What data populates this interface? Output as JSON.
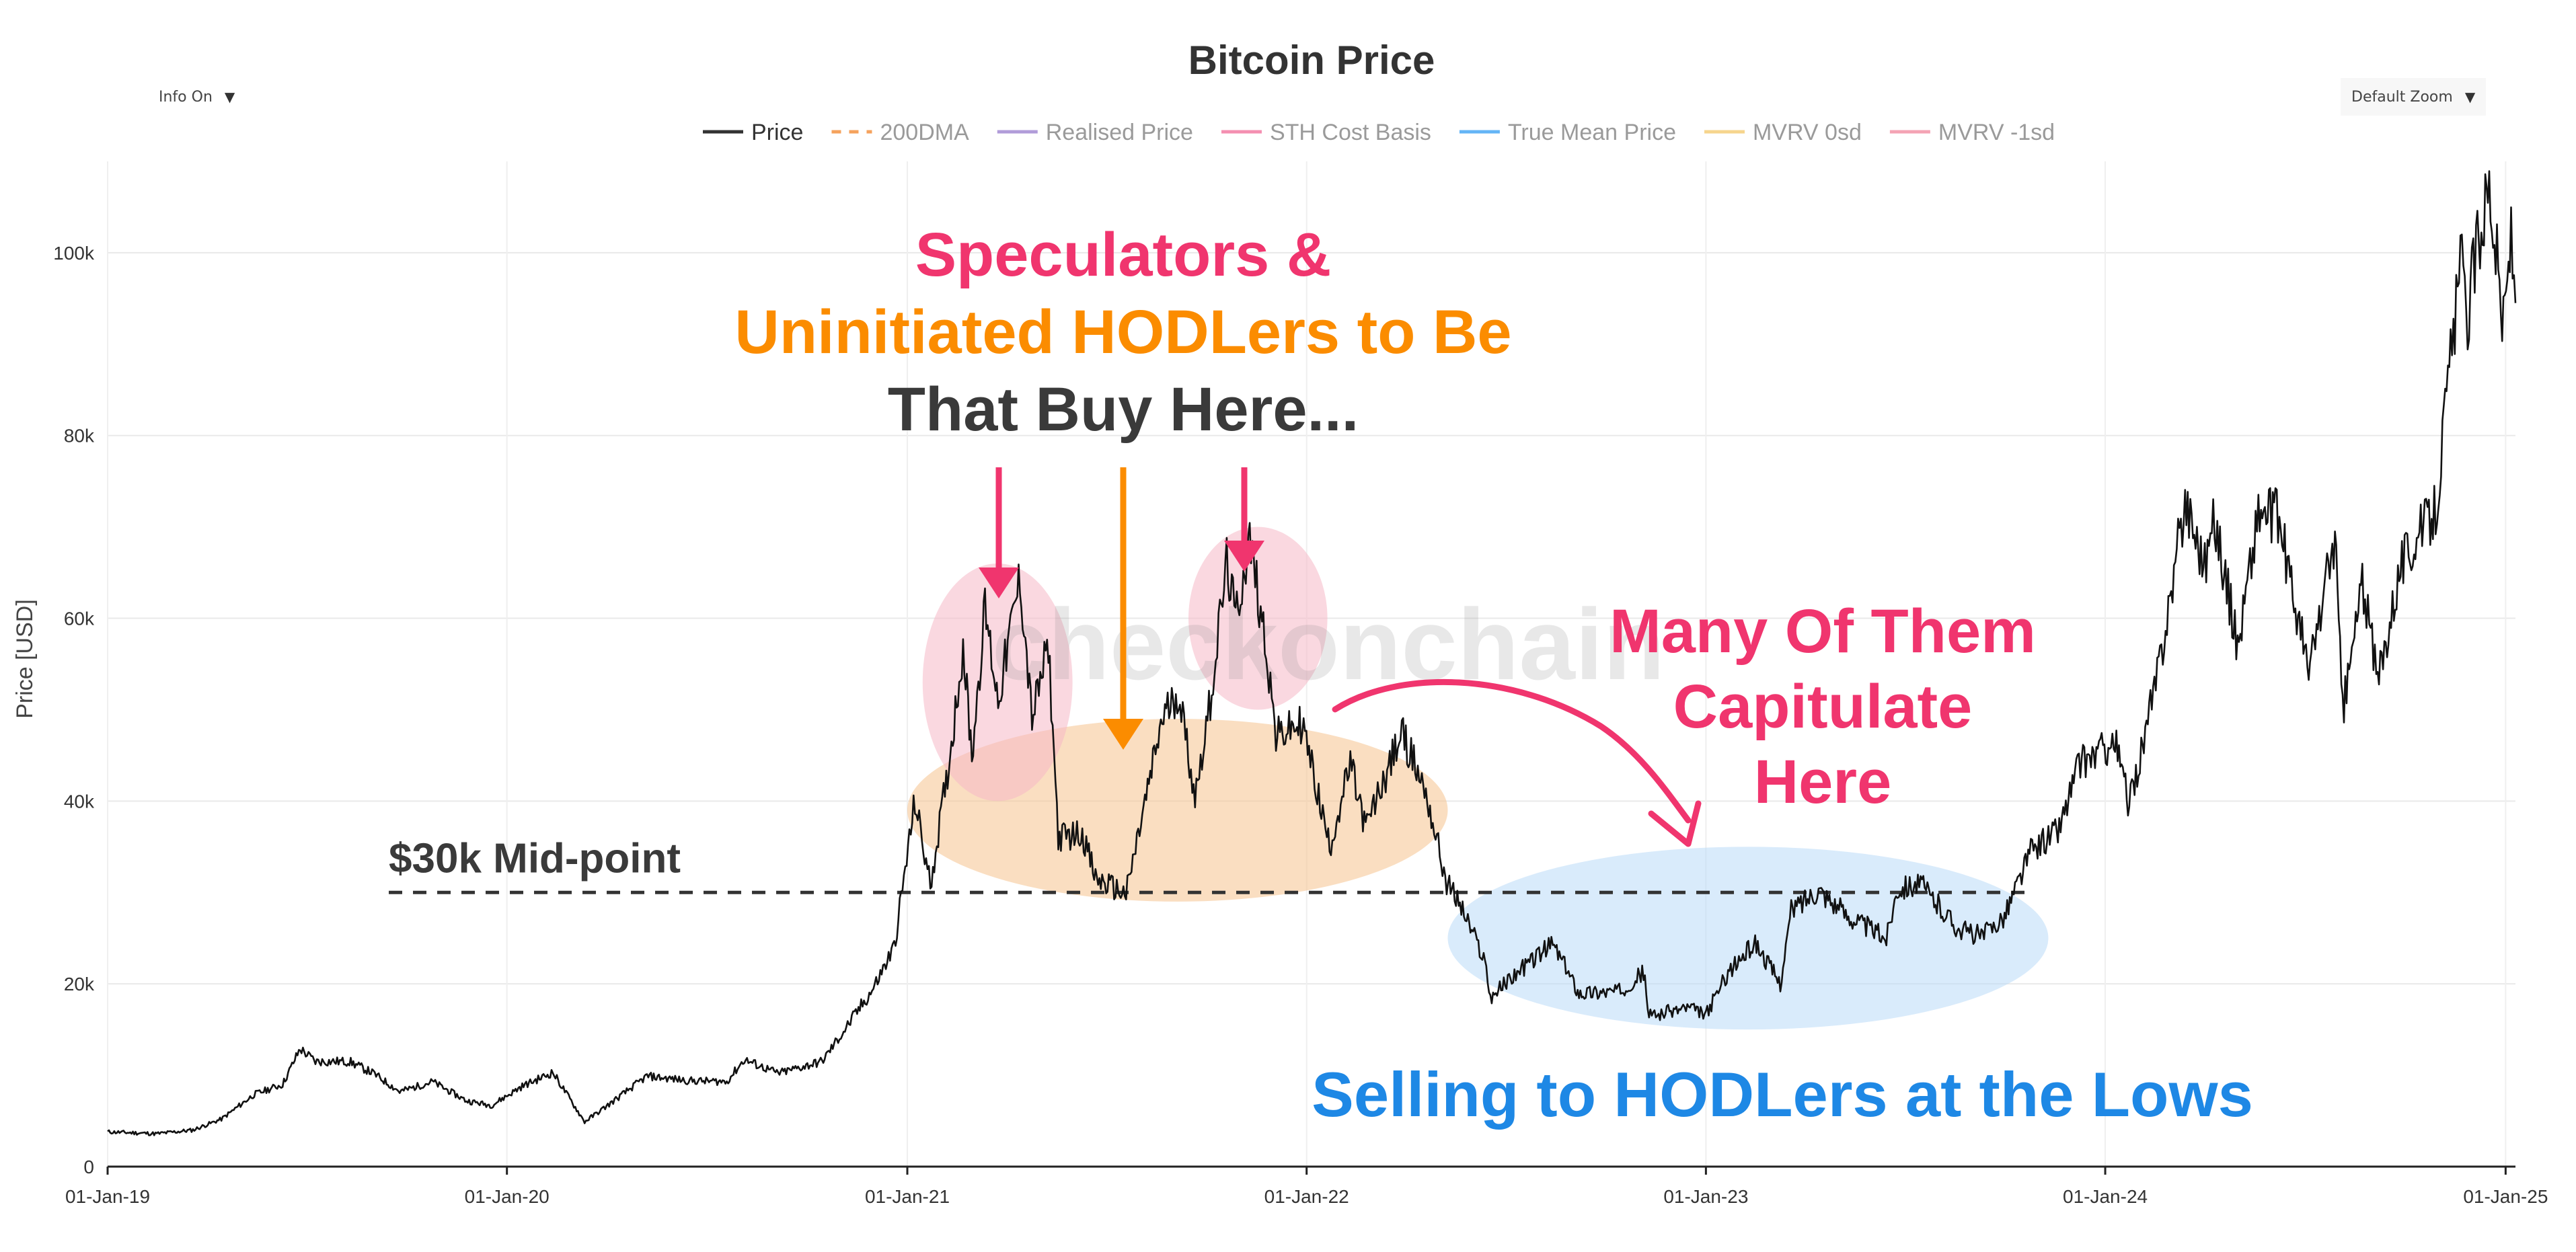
{
  "controls": {
    "info_toggle": "Info On",
    "zoom_select": "Default Zoom",
    "dropdown_icon": "caret-down-icon"
  },
  "chart_data": {
    "type": "line",
    "title": "Bitcoin Price",
    "ylabel": "Price [USD]",
    "xlabel": "",
    "ylim": [
      0,
      110000
    ],
    "x_range": [
      "2019-01-01",
      "2025-01-10"
    ],
    "y_ticks": [
      0,
      20000,
      40000,
      60000,
      80000,
      100000
    ],
    "y_tick_labels": [
      "0",
      "20k",
      "40k",
      "60k",
      "80k",
      "100k"
    ],
    "x_ticks": [
      "2019-01-01",
      "2020-01-01",
      "2021-01-01",
      "2022-01-01",
      "2023-01-01",
      "2024-01-01",
      "2025-01-01"
    ],
    "x_tick_labels": [
      "01-Jan-19",
      "01-Jan-20",
      "01-Jan-21",
      "01-Jan-22",
      "01-Jan-23",
      "01-Jan-24",
      "01-Jan-25"
    ],
    "grid": true,
    "legend_position": "top-center",
    "legend": [
      {
        "name": "Price",
        "color": "#333333",
        "style": "solid",
        "active": true
      },
      {
        "name": "200DMA",
        "color": "#f5a25d",
        "style": "dashed",
        "active": false
      },
      {
        "name": "Realised Price",
        "color": "#b19cd9",
        "style": "solid",
        "active": false
      },
      {
        "name": "STH Cost Basis",
        "color": "#f48fb1",
        "style": "solid",
        "active": false
      },
      {
        "name": "True Mean Price",
        "color": "#64b5f6",
        "style": "solid",
        "active": false
      },
      {
        "name": "MVRV 0sd",
        "color": "#f6d58e",
        "style": "solid",
        "active": false
      },
      {
        "name": "MVRV -1sd",
        "color": "#f4a3b4",
        "style": "solid",
        "active": false
      }
    ],
    "series": [
      {
        "name": "Price",
        "color": "#111111",
        "points": [
          [
            "2019-01-01",
            3800
          ],
          [
            "2019-02-15",
            3600
          ],
          [
            "2019-03-20",
            4000
          ],
          [
            "2019-04-15",
            5200
          ],
          [
            "2019-05-15",
            7900
          ],
          [
            "2019-06-10",
            9000
          ],
          [
            "2019-06-26",
            12900
          ],
          [
            "2019-07-10",
            11500
          ],
          [
            "2019-08-10",
            11500
          ],
          [
            "2019-09-01",
            10200
          ],
          [
            "2019-09-25",
            8200
          ],
          [
            "2019-10-25",
            9300
          ],
          [
            "2019-11-25",
            7200
          ],
          [
            "2019-12-18",
            6700
          ],
          [
            "2020-01-15",
            8800
          ],
          [
            "2020-02-12",
            10300
          ],
          [
            "2020-03-12",
            4900
          ],
          [
            "2020-04-01",
            6600
          ],
          [
            "2020-05-08",
            9900
          ],
          [
            "2020-06-15",
            9400
          ],
          [
            "2020-07-20",
            9300
          ],
          [
            "2020-08-05",
            11700
          ],
          [
            "2020-09-05",
            10200
          ],
          [
            "2020-10-15",
            11500
          ],
          [
            "2020-11-05",
            15000
          ],
          [
            "2020-12-01",
            19500
          ],
          [
            "2020-12-20",
            24000
          ],
          [
            "2021-01-08",
            40000
          ],
          [
            "2021-01-22",
            30800
          ],
          [
            "2021-02-08",
            44000
          ],
          [
            "2021-02-21",
            57000
          ],
          [
            "2021-03-01",
            45000
          ],
          [
            "2021-03-13",
            61000
          ],
          [
            "2021-03-25",
            51000
          ],
          [
            "2021-04-14",
            64500
          ],
          [
            "2021-04-25",
            49000
          ],
          [
            "2021-05-10",
            57000
          ],
          [
            "2021-05-19",
            36000
          ],
          [
            "2021-06-10",
            36500
          ],
          [
            "2021-06-22",
            31500
          ],
          [
            "2021-07-20",
            29800
          ],
          [
            "2021-08-05",
            39000
          ],
          [
            "2021-08-22",
            49000
          ],
          [
            "2021-09-06",
            52000
          ],
          [
            "2021-09-21",
            40500
          ],
          [
            "2021-10-05",
            51000
          ],
          [
            "2021-10-20",
            66000
          ],
          [
            "2021-10-28",
            60000
          ],
          [
            "2021-11-10",
            68500
          ],
          [
            "2021-11-25",
            57000
          ],
          [
            "2021-12-04",
            47000
          ],
          [
            "2021-12-28",
            48500
          ],
          [
            "2022-01-22",
            35000
          ],
          [
            "2022-02-10",
            44000
          ],
          [
            "2022-02-24",
            37000
          ],
          [
            "2022-03-29",
            47500
          ],
          [
            "2022-04-20",
            41000
          ],
          [
            "2022-05-09",
            31000
          ],
          [
            "2022-05-20",
            29000
          ],
          [
            "2022-06-13",
            22500
          ],
          [
            "2022-06-18",
            18500
          ],
          [
            "2022-07-10",
            21000
          ],
          [
            "2022-08-14",
            24400
          ],
          [
            "2022-09-07",
            19000
          ],
          [
            "2022-10-15",
            19200
          ],
          [
            "2022-11-05",
            21300
          ],
          [
            "2022-11-10",
            16500
          ],
          [
            "2022-12-15",
            17400
          ],
          [
            "2023-01-01",
            16600
          ],
          [
            "2023-01-20",
            21000
          ],
          [
            "2023-02-15",
            24500
          ],
          [
            "2023-03-10",
            20000
          ],
          [
            "2023-03-20",
            28000
          ],
          [
            "2023-04-14",
            30400
          ],
          [
            "2023-05-10",
            27500
          ],
          [
            "2023-06-15",
            25000
          ],
          [
            "2023-06-25",
            30500
          ],
          [
            "2023-07-15",
            31000
          ],
          [
            "2023-08-20",
            26000
          ],
          [
            "2023-09-11",
            25200
          ],
          [
            "2023-10-01",
            27500
          ],
          [
            "2023-10-25",
            34500
          ],
          [
            "2023-11-20",
            37000
          ],
          [
            "2023-12-08",
            44000
          ],
          [
            "2024-01-10",
            46500
          ],
          [
            "2024-01-23",
            39500
          ],
          [
            "2024-02-15",
            52000
          ],
          [
            "2024-02-29",
            62000
          ],
          [
            "2024-03-14",
            73000
          ],
          [
            "2024-04-01",
            66000
          ],
          [
            "2024-04-10",
            71000
          ],
          [
            "2024-05-01",
            57000
          ],
          [
            "2024-05-20",
            71500
          ],
          [
            "2024-06-07",
            71000
          ],
          [
            "2024-07-05",
            54000
          ],
          [
            "2024-07-29",
            69000
          ],
          [
            "2024-08-05",
            49500
          ],
          [
            "2024-08-23",
            64000
          ],
          [
            "2024-09-06",
            53000
          ],
          [
            "2024-09-27",
            66000
          ],
          [
            "2024-10-29",
            72000
          ],
          [
            "2024-11-13",
            90000
          ],
          [
            "2024-11-22",
            99000
          ],
          [
            "2024-11-26",
            92000
          ],
          [
            "2024-12-05",
            100500
          ],
          [
            "2024-12-17",
            108000
          ],
          [
            "2024-12-30",
            92000
          ],
          [
            "2025-01-06",
            102000
          ],
          [
            "2025-01-10",
            94500
          ]
        ]
      }
    ],
    "reference_lines": [
      {
        "label": "$30k Mid-point",
        "y": 30000,
        "x_start": "2019-09-15",
        "x_end": "2023-10-20",
        "style": "dashed"
      }
    ],
    "annotations": [
      {
        "lines": [
          "Speculators &"
        ],
        "color": "#f0356e"
      },
      {
        "lines": [
          "Uninitiated HODLers to Be"
        ],
        "color": "#fb8c00"
      },
      {
        "lines": [
          "That Buy Here..."
        ],
        "color": "#3a3a3a"
      },
      {
        "lines": [
          "Many Of Them",
          "Capitulate",
          "Here"
        ],
        "color": "#f0356e"
      },
      {
        "lines": [
          "Selling to HODLers at the Lows"
        ],
        "color": "#1e88e5"
      }
    ],
    "highlight_regions": [
      {
        "name": "speculator-buy-zone",
        "color": "#f5c28e",
        "x_range": [
          "2021-01-01",
          "2022-05-10"
        ],
        "y_range": [
          29000,
          49000
        ]
      },
      {
        "name": "capitulation-zone",
        "color": "#b9daf7",
        "x_range": [
          "2022-05-10",
          "2023-11-10"
        ],
        "y_range": [
          15000,
          35000
        ]
      },
      {
        "name": "peak-2021-spring",
        "color": "#f6b8c6",
        "x_range": [
          "2021-01-15",
          "2021-06-01"
        ],
        "y_range": [
          40000,
          66000
        ]
      },
      {
        "name": "peak-2021-autumn",
        "color": "#f6b8c6",
        "x_range": [
          "2021-09-15",
          "2022-01-20"
        ],
        "y_range": [
          50000,
          70000
        ]
      }
    ],
    "watermark": "checkonchain"
  }
}
